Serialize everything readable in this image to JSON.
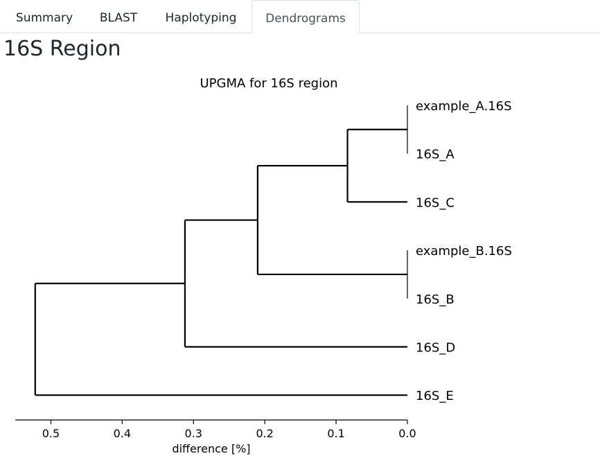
{
  "tabs": [
    {
      "label": "Summary",
      "active": false
    },
    {
      "label": "BLAST",
      "active": false
    },
    {
      "label": "Haplotyping",
      "active": false
    },
    {
      "label": "Dendrograms",
      "active": true
    }
  ],
  "page_title": "16S Region",
  "chart_data": {
    "type": "dendrogram",
    "title": "UPGMA for 16S region",
    "xlabel": "difference [%]",
    "ylabel": "",
    "xlim": [
      0.55,
      0.0
    ],
    "x_ticks": [
      0.5,
      0.4,
      0.3,
      0.2,
      0.1,
      0.0
    ],
    "x_tick_labels": [
      "0.5",
      "0.4",
      "0.3",
      "0.2",
      "0.1",
      "0.0"
    ],
    "leaves": [
      "example_A.16S",
      "16S_A",
      "16S_C",
      "example_B.16S",
      "16S_B",
      "16S_D",
      "16S_E"
    ],
    "merges": [
      {
        "id": "m1",
        "children": [
          "example_A.16S",
          "16S_A"
        ],
        "height": 0.0
      },
      {
        "id": "m2",
        "children": [
          "m1",
          "16S_C"
        ],
        "height": 0.084
      },
      {
        "id": "m3",
        "children": [
          "example_B.16S",
          "16S_B"
        ],
        "height": 0.0
      },
      {
        "id": "m4",
        "children": [
          "m2",
          "m3"
        ],
        "height": 0.21
      },
      {
        "id": "m5",
        "children": [
          "m4",
          "16S_D"
        ],
        "height": 0.312
      },
      {
        "id": "m6",
        "children": [
          "m5",
          "16S_E"
        ],
        "height": 0.522
      }
    ],
    "grid": false,
    "orientation": "left"
  }
}
